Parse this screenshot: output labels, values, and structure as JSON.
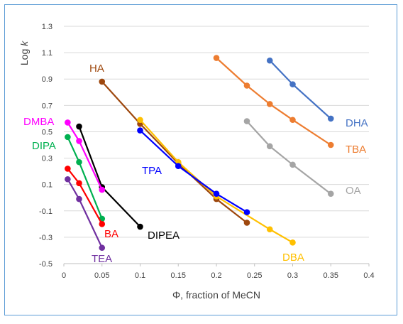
{
  "chart_data": {
    "type": "line",
    "xlabel": "Φ, fraction of MeCN",
    "ylabel_main": "Log ",
    "ylabel_italic": "k",
    "xlim": [
      0,
      0.4
    ],
    "ylim": [
      -0.5,
      1.3
    ],
    "xticks": [
      "0",
      "0.05",
      "0.1",
      "0.15",
      "0.2",
      "0.25",
      "0.3",
      "0.35",
      "0.4"
    ],
    "yticks": [
      "-0.5",
      "-0.3",
      "-0.1",
      "0.1",
      "0.3",
      "0.5",
      "0.7",
      "0.9",
      "1.1",
      "1.3"
    ],
    "grid": "horizontal",
    "series": [
      {
        "name": "DHA",
        "color": "#4472c4",
        "x": [
          0.27,
          0.3,
          0.35
        ],
        "y": [
          1.04,
          0.86,
          0.6
        ]
      },
      {
        "name": "TBA",
        "color": "#ed7d31",
        "x": [
          0.2,
          0.24,
          0.27,
          0.3,
          0.35
        ],
        "y": [
          1.06,
          0.85,
          0.71,
          0.59,
          0.4
        ]
      },
      {
        "name": "OA",
        "color": "#a5a5a5",
        "x": [
          0.24,
          0.27,
          0.3,
          0.35
        ],
        "y": [
          0.58,
          0.39,
          0.25,
          0.03
        ]
      },
      {
        "name": "HA",
        "color": "#9e480e",
        "x": [
          0.05,
          0.1,
          0.15,
          0.2,
          0.24
        ],
        "y": [
          0.88,
          0.56,
          0.26,
          -0.01,
          -0.19
        ]
      },
      {
        "name": "DBA",
        "color": "#ffc000",
        "x": [
          0.1,
          0.15,
          0.2,
          0.27,
          0.3
        ],
        "y": [
          0.59,
          0.27,
          0.01,
          -0.24,
          -0.34
        ]
      },
      {
        "name": "TPA",
        "color": "#0000ff",
        "x": [
          0.1,
          0.15,
          0.2,
          0.24
        ],
        "y": [
          0.51,
          0.24,
          0.03,
          -0.11
        ]
      },
      {
        "name": "DIPEA",
        "color": "#000000",
        "x": [
          0.02,
          0.05,
          0.1
        ],
        "y": [
          0.54,
          0.08,
          -0.22
        ]
      },
      {
        "name": "DMBA",
        "color": "#ff00ff",
        "x": [
          0.005,
          0.02,
          0.05
        ],
        "y": [
          0.57,
          0.43,
          0.06
        ]
      },
      {
        "name": "DIPA",
        "color": "#00b050",
        "x": [
          0.005,
          0.02,
          0.05
        ],
        "y": [
          0.46,
          0.27,
          -0.16
        ]
      },
      {
        "name": "BA",
        "color": "#ff0000",
        "x": [
          0.005,
          0.02,
          0.05
        ],
        "y": [
          0.22,
          0.11,
          -0.2
        ]
      },
      {
        "name": "TEA",
        "color": "#7030a0",
        "x": [
          0.005,
          0.02,
          0.05
        ],
        "y": [
          0.14,
          -0.01,
          -0.38
        ]
      }
    ]
  }
}
